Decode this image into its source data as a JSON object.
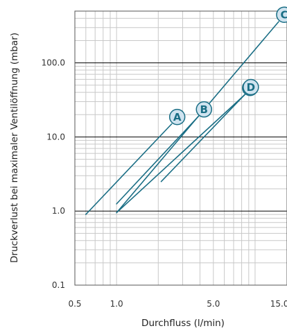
{
  "chart_data": {
    "type": "line",
    "x_scale": "log",
    "y_scale": "log",
    "xlim": [
      0.5,
      17
    ],
    "ylim": [
      0.1,
      500
    ],
    "xlabel": "Durchfluss (l/min)",
    "ylabel": "Druckverlust bei maximaler Ventilöffnung (mbar)",
    "x_tick_labels": [
      {
        "value": 0.5,
        "label": "0.5"
      },
      {
        "value": 1.0,
        "label": "1.0"
      },
      {
        "value": 5.0,
        "label": "5.0"
      },
      {
        "value": 15.0,
        "label": "15.0"
      }
    ],
    "y_tick_labels": [
      {
        "value": 0.1,
        "label": "0.1"
      },
      {
        "value": 1.0,
        "label": "1.0"
      },
      {
        "value": 10.0,
        "label": "10.0"
      },
      {
        "value": 100.0,
        "label": "100.0"
      }
    ],
    "grid": true,
    "series": [
      {
        "name": "A",
        "x": [
          0.6,
          2.5
        ],
        "y": [
          0.9,
          15
        ]
      },
      {
        "name": "B",
        "x": [
          1.0,
          3.9
        ],
        "y": [
          1.25,
          19
        ]
      },
      {
        "name": "B",
        "x": [
          1.0,
          8.4
        ],
        "y": [
          0.95,
          37
        ]
      },
      {
        "name": "D",
        "x": [
          2.1,
          8.5
        ],
        "y": [
          2.5,
          38
        ]
      },
      {
        "name": "C",
        "x": [
          1.0,
          14.8
        ],
        "y": [
          0.95,
          360
        ]
      }
    ],
    "colors": {
      "line": "#1a6e85",
      "label_fill": "#cfe3ef",
      "grid_major": "#000000",
      "grid_minor": "#c8c8c8"
    }
  }
}
